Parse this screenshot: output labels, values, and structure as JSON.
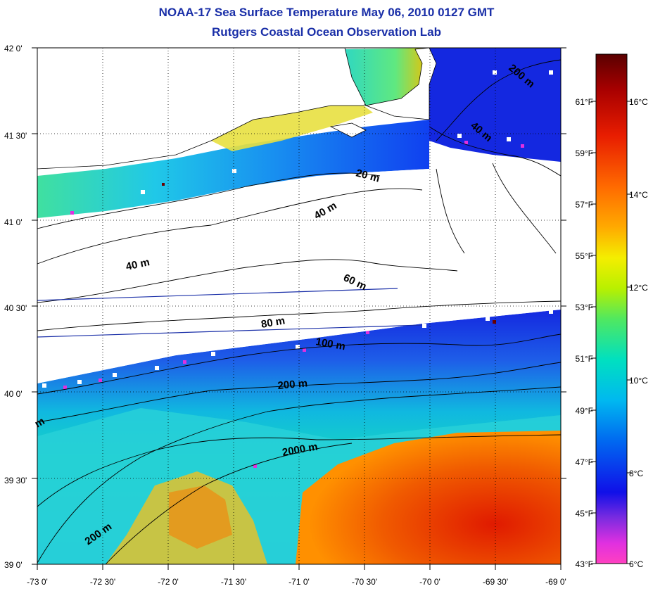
{
  "header": {
    "title": "NOAA-17 Sea Surface Temperature May 06, 2010 0127 GMT",
    "subtitle": "Rutgers Coastal Ocean Observation Lab"
  },
  "map": {
    "lon_ticks": [
      "-73 0'",
      "-72 30'",
      "-72 0'",
      "-71 30'",
      "-71 0'",
      "-70 30'",
      "-70 0'",
      "-69 30'",
      "-69 0'"
    ],
    "lat_ticks": [
      "42 0'",
      "41 30'",
      "41 0'",
      "40 30'",
      "40 0'",
      "39 30'",
      "39 0'"
    ],
    "lon_range": [
      -73,
      -69
    ],
    "lat_range": [
      39,
      42
    ],
    "contour_labels": [
      "200 m",
      "40 m",
      "20 m",
      "40 m",
      "40 m",
      "60 m",
      "80 m",
      "100 m",
      "200 m",
      "2000 m",
      "200 m",
      "m"
    ],
    "colors": {
      "land": "#ffffff",
      "cloud_mask": "#ffffff",
      "warm_water": "#e63a0a",
      "cold_water": "#1428e0",
      "transect_line": "#1a2fa8",
      "contour_line": "#000000"
    }
  },
  "colorbar": {
    "fahrenheit_labels": [
      "61°F",
      "59°F",
      "57°F",
      "55°F",
      "53°F",
      "51°F",
      "49°F",
      "47°F",
      "45°F",
      "43°F"
    ],
    "celsius_labels": [
      "16°C",
      "14°C",
      "12°C",
      "10°C",
      "8°C",
      "6°C"
    ],
    "range_celsius": [
      6,
      17
    ],
    "gradient_colors": [
      "#6b0000",
      "#b40000",
      "#e81d00",
      "#ff6a00",
      "#ffb000",
      "#f4ee00",
      "#b8f000",
      "#50e860",
      "#00e0c0",
      "#00b8f0",
      "#0068f0",
      "#1010e8",
      "#7a2be0",
      "#e030e0",
      "#ff40c0"
    ]
  }
}
